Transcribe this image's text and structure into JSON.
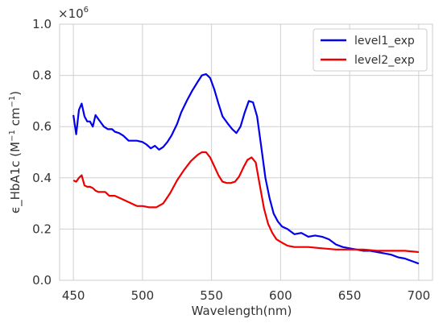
{
  "chart_data": {
    "type": "line",
    "title": "",
    "xlabel": "Wavelength(nm)",
    "ylabel": "ϵ_HbA1c (M",
    "ylabel_sup1": "−1",
    "ylabel_mid": " cm",
    "ylabel_sup2": "−1",
    "ylabel_end": ")",
    "y_multiplier": "×10",
    "y_multiplier_exp": "6",
    "xlim": [
      440,
      710
    ],
    "ylim": [
      0.0,
      1.0
    ],
    "xticks": [
      450,
      500,
      550,
      600,
      650,
      700
    ],
    "xtick_labels": [
      "450",
      "500",
      "550",
      "600",
      "650",
      "700"
    ],
    "yticks": [
      0.0,
      0.2,
      0.4,
      0.6,
      0.8,
      1.0
    ],
    "ytick_labels": [
      "0.0",
      "0.2",
      "0.4",
      "0.6",
      "0.8",
      "1.0"
    ],
    "grid": true,
    "legend_position": "upper right",
    "series": [
      {
        "name": "level1_exp",
        "color": "#0000ee",
        "x": [
          450,
          452,
          454,
          456,
          458,
          460,
          462,
          464,
          466,
          468,
          470,
          472,
          475,
          478,
          480,
          483,
          486,
          490,
          493,
          496,
          500,
          503,
          506,
          509,
          512,
          515,
          518,
          521,
          525,
          528,
          532,
          536,
          540,
          543,
          546,
          549,
          552,
          555,
          558,
          562,
          565,
          568,
          571,
          574,
          577,
          580,
          583,
          586,
          589,
          592,
          595,
          598,
          601,
          605,
          610,
          615,
          620,
          625,
          630,
          635,
          640,
          645,
          650,
          655,
          660,
          665,
          670,
          675,
          680,
          685,
          690,
          695,
          700
        ],
        "y": [
          0.645,
          0.57,
          0.665,
          0.69,
          0.64,
          0.62,
          0.62,
          0.6,
          0.645,
          0.63,
          0.615,
          0.6,
          0.59,
          0.59,
          0.58,
          0.575,
          0.565,
          0.545,
          0.545,
          0.545,
          0.54,
          0.53,
          0.515,
          0.525,
          0.51,
          0.52,
          0.54,
          0.565,
          0.61,
          0.655,
          0.7,
          0.74,
          0.775,
          0.8,
          0.805,
          0.79,
          0.745,
          0.69,
          0.64,
          0.61,
          0.59,
          0.575,
          0.6,
          0.655,
          0.7,
          0.695,
          0.64,
          0.52,
          0.4,
          0.32,
          0.26,
          0.23,
          0.21,
          0.2,
          0.18,
          0.185,
          0.17,
          0.175,
          0.17,
          0.16,
          0.14,
          0.13,
          0.125,
          0.12,
          0.115,
          0.115,
          0.11,
          0.105,
          0.1,
          0.09,
          0.085,
          0.075,
          0.065
        ]
      },
      {
        "name": "level2_exp",
        "color": "#ee0000",
        "x": [
          450,
          452,
          454,
          456,
          458,
          460,
          462,
          464,
          466,
          468,
          470,
          473,
          476,
          480,
          484,
          488,
          492,
          496,
          500,
          505,
          510,
          515,
          520,
          525,
          530,
          535,
          540,
          543,
          546,
          549,
          552,
          555,
          558,
          561,
          564,
          567,
          570,
          573,
          576,
          579,
          582,
          585,
          588,
          591,
          594,
          597,
          600,
          605,
          610,
          615,
          620,
          630,
          640,
          650,
          660,
          670,
          680,
          690,
          700
        ],
        "y": [
          0.39,
          0.385,
          0.4,
          0.41,
          0.37,
          0.365,
          0.365,
          0.36,
          0.35,
          0.345,
          0.345,
          0.345,
          0.33,
          0.33,
          0.32,
          0.31,
          0.3,
          0.29,
          0.29,
          0.285,
          0.285,
          0.3,
          0.34,
          0.39,
          0.43,
          0.465,
          0.49,
          0.5,
          0.5,
          0.48,
          0.445,
          0.41,
          0.385,
          0.38,
          0.38,
          0.385,
          0.405,
          0.44,
          0.47,
          0.48,
          0.46,
          0.37,
          0.28,
          0.22,
          0.185,
          0.16,
          0.15,
          0.135,
          0.13,
          0.13,
          0.13,
          0.125,
          0.12,
          0.12,
          0.12,
          0.115,
          0.115,
          0.115,
          0.11
        ]
      }
    ]
  }
}
